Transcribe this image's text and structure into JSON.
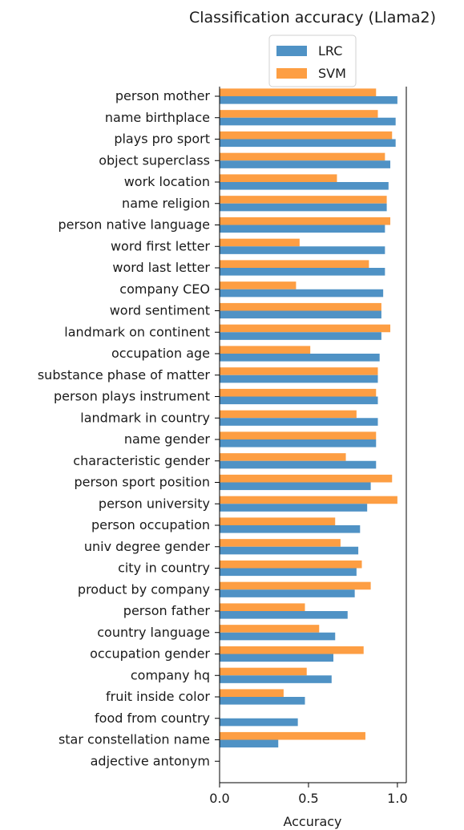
{
  "chart_data": {
    "type": "bar",
    "orientation": "horizontal",
    "title": "Classification accuracy (Llama2)",
    "xlabel": "Accuracy",
    "ylabel": "",
    "xlim": [
      0,
      1.05
    ],
    "xticks": [
      "0.0",
      "0.5",
      "1.0"
    ],
    "grid": false,
    "legend_placement": "top-center",
    "categories": [
      "person mother",
      "name birthplace",
      "plays pro sport",
      "object superclass",
      "work location",
      "name religion",
      "person native language",
      "word first letter",
      "word last letter",
      "company CEO",
      "word sentiment",
      "landmark on continent",
      "occupation age",
      "substance phase of matter",
      "person plays instrument",
      "landmark in country",
      "name gender",
      "characteristic gender",
      "person sport position",
      "person university",
      "person occupation",
      "univ degree gender",
      "city in country",
      "product by company",
      "person father",
      "country language",
      "occupation gender",
      "company hq",
      "fruit inside color",
      "food from country",
      "star constellation name",
      "adjective antonym"
    ],
    "series": [
      {
        "name": "LRC",
        "color": "#4f92c5",
        "values": [
          1.0,
          0.99,
          0.99,
          0.96,
          0.95,
          0.94,
          0.93,
          0.93,
          0.93,
          0.92,
          0.91,
          0.91,
          0.9,
          0.89,
          0.89,
          0.89,
          0.88,
          0.88,
          0.85,
          0.83,
          0.79,
          0.78,
          0.77,
          0.76,
          0.72,
          0.65,
          0.64,
          0.63,
          0.48,
          0.44,
          0.33,
          0.0
        ]
      },
      {
        "name": "SVM",
        "color": "#fd9e43",
        "values": [
          0.88,
          0.89,
          0.97,
          0.93,
          0.66,
          0.94,
          0.96,
          0.45,
          0.84,
          0.43,
          0.91,
          0.96,
          0.51,
          0.89,
          0.88,
          0.77,
          0.88,
          0.71,
          0.97,
          1.0,
          0.65,
          0.68,
          0.8,
          0.85,
          0.48,
          0.56,
          0.81,
          0.49,
          0.36,
          0.0,
          0.82,
          0.0
        ]
      }
    ]
  }
}
